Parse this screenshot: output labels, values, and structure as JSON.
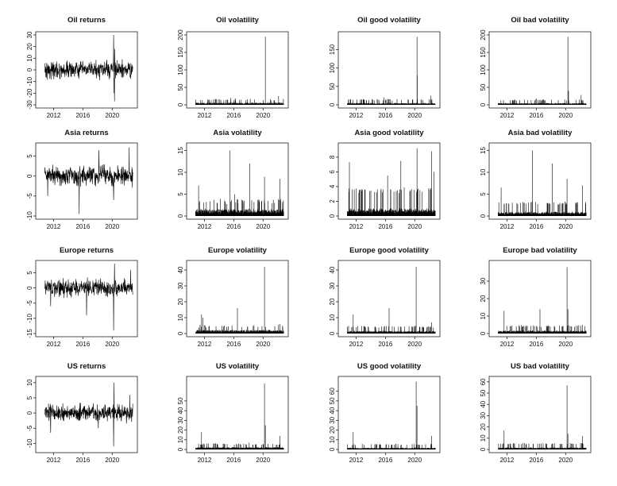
{
  "figure": {
    "columns": 4,
    "rows": 4
  },
  "chart_data": [
    {
      "type": "line",
      "title": "Oil returns",
      "x_ticks": [
        "2012",
        "2016",
        "2020"
      ],
      "y_ticks": [
        "-30",
        "-20",
        "-10",
        "0",
        "10",
        "20",
        "30"
      ],
      "xlim": [
        2010,
        2023
      ],
      "ylim": [
        -30,
        30
      ],
      "style": "returns",
      "noise": 3.5,
      "spikes": [
        {
          "x": 2020.2,
          "y": 30
        },
        {
          "x": 2020.3,
          "y": -27
        },
        {
          "x": 2020.35,
          "y": 18
        },
        {
          "x": 2020.25,
          "y": -20
        }
      ],
      "grid": false
    },
    {
      "type": "line",
      "title": "Oil volatility",
      "x_ticks": [
        "2012",
        "2016",
        "2020"
      ],
      "y_ticks": [
        "0",
        "50",
        "100",
        "150",
        "200"
      ],
      "xlim": [
        2010,
        2023
      ],
      "ylim": [
        0,
        200
      ],
      "style": "vol",
      "base": 4,
      "noise": 4,
      "spikes": [
        {
          "x": 2020.3,
          "y": 195
        },
        {
          "x": 2015.6,
          "y": 20
        },
        {
          "x": 2016.2,
          "y": 18
        },
        {
          "x": 2022.1,
          "y": 25
        }
      ],
      "grid": false
    },
    {
      "type": "line",
      "title": "Oil good volatility",
      "x_ticks": [
        "2012",
        "2016",
        "2020"
      ],
      "y_ticks": [
        "0",
        "50",
        "100",
        "150"
      ],
      "xlim": [
        2010,
        2023
      ],
      "ylim": [
        0,
        190
      ],
      "style": "vol",
      "base": 3,
      "noise": 4,
      "spikes": [
        {
          "x": 2020.3,
          "y": 185
        },
        {
          "x": 2020.35,
          "y": 80
        },
        {
          "x": 2015.8,
          "y": 20
        },
        {
          "x": 2022.2,
          "y": 25
        }
      ],
      "grid": false
    },
    {
      "type": "line",
      "title": "Oil bad volatility",
      "x_ticks": [
        "2012",
        "2016",
        "2020"
      ],
      "y_ticks": [
        "0",
        "50",
        "100",
        "150",
        "200"
      ],
      "xlim": [
        2010,
        2023
      ],
      "ylim": [
        0,
        200
      ],
      "style": "vol",
      "base": 3,
      "noise": 4,
      "spikes": [
        {
          "x": 2020.3,
          "y": 195
        },
        {
          "x": 2020.4,
          "y": 40
        },
        {
          "x": 2016.0,
          "y": 18
        },
        {
          "x": 2022.1,
          "y": 28
        }
      ],
      "grid": false
    },
    {
      "type": "line",
      "title": "Asia returns",
      "x_ticks": [
        "2012",
        "2016",
        "2020"
      ],
      "y_ticks": [
        "-10",
        "-5",
        "0",
        "5"
      ],
      "xlim": [
        2010,
        2023
      ],
      "ylim": [
        -10,
        7.5
      ],
      "style": "returns",
      "noise": 1.2,
      "spikes": [
        {
          "x": 2015.5,
          "y": -9.5
        },
        {
          "x": 2018.2,
          "y": 6.5
        },
        {
          "x": 2022.3,
          "y": 7.2
        },
        {
          "x": 2020.2,
          "y": -6
        },
        {
          "x": 2011.2,
          "y": -5
        }
      ],
      "grid": false
    },
    {
      "type": "line",
      "title": "Asia volatility",
      "x_ticks": [
        "2012",
        "2016",
        "2020"
      ],
      "y_ticks": [
        "0",
        "5",
        "10",
        "15"
      ],
      "xlim": [
        2010,
        2023
      ],
      "ylim": [
        0,
        16
      ],
      "style": "vol",
      "base": 1,
      "noise": 0.9,
      "spikes": [
        {
          "x": 2015.5,
          "y": 15
        },
        {
          "x": 2018.2,
          "y": 12
        },
        {
          "x": 2020.2,
          "y": 9
        },
        {
          "x": 2022.3,
          "y": 8.5
        },
        {
          "x": 2011.2,
          "y": 7
        },
        {
          "x": 2016.1,
          "y": 5
        }
      ],
      "grid": false
    },
    {
      "type": "line",
      "title": "Asia good volatility",
      "x_ticks": [
        "2012",
        "2016",
        "2020"
      ],
      "y_ticks": [
        "0",
        "2",
        "4",
        "6",
        "8"
      ],
      "xlim": [
        2010,
        2023
      ],
      "ylim": [
        0,
        9.5
      ],
      "style": "vol",
      "base": 0.5,
      "noise": 1.1,
      "spikes": [
        {
          "x": 2020.3,
          "y": 9.2
        },
        {
          "x": 2022.3,
          "y": 8.8
        },
        {
          "x": 2018.1,
          "y": 7.5
        },
        {
          "x": 2011.1,
          "y": 7.3
        },
        {
          "x": 2016.3,
          "y": 5.5
        },
        {
          "x": 2022.6,
          "y": 6
        }
      ],
      "grid": false
    },
    {
      "type": "line",
      "title": "Asia bad volatility",
      "x_ticks": [
        "2012",
        "2016",
        "2020"
      ],
      "y_ticks": [
        "0",
        "5",
        "10",
        "15"
      ],
      "xlim": [
        2010,
        2023
      ],
      "ylim": [
        0,
        16
      ],
      "style": "vol",
      "base": 0.5,
      "noise": 0.9,
      "spikes": [
        {
          "x": 2015.5,
          "y": 15
        },
        {
          "x": 2018.2,
          "y": 12
        },
        {
          "x": 2020.2,
          "y": 8.5
        },
        {
          "x": 2011.2,
          "y": 6.5
        },
        {
          "x": 2022.3,
          "y": 7
        }
      ],
      "grid": false
    },
    {
      "type": "line",
      "title": "Europe returns",
      "x_ticks": [
        "2012",
        "2016",
        "2020"
      ],
      "y_ticks": [
        "-15",
        "-10",
        "-5",
        "0",
        "5"
      ],
      "xlim": [
        2010,
        2023
      ],
      "ylim": [
        -15,
        8
      ],
      "style": "returns",
      "noise": 1.4,
      "spikes": [
        {
          "x": 2020.2,
          "y": -14
        },
        {
          "x": 2020.3,
          "y": 8
        },
        {
          "x": 2016.5,
          "y": -9
        },
        {
          "x": 2011.6,
          "y": -6
        },
        {
          "x": 2022.5,
          "y": 6
        }
      ],
      "grid": false
    },
    {
      "type": "line",
      "title": "Europe volatility",
      "x_ticks": [
        "2012",
        "2016",
        "2020"
      ],
      "y_ticks": [
        "0",
        "10",
        "20",
        "30",
        "40"
      ],
      "xlim": [
        2010,
        2023
      ],
      "ylim": [
        0,
        44
      ],
      "style": "vol",
      "base": 1.5,
      "noise": 1.2,
      "spikes": [
        {
          "x": 2020.2,
          "y": 42
        },
        {
          "x": 2016.5,
          "y": 16
        },
        {
          "x": 2011.6,
          "y": 12
        },
        {
          "x": 2011.8,
          "y": 10
        },
        {
          "x": 2022.3,
          "y": 6
        }
      ],
      "grid": false
    },
    {
      "type": "line",
      "title": "Europe good volatility",
      "x_ticks": [
        "2012",
        "2016",
        "2020"
      ],
      "y_ticks": [
        "0",
        "10",
        "20",
        "30",
        "40"
      ],
      "xlim": [
        2010,
        2023
      ],
      "ylim": [
        0,
        44
      ],
      "style": "vol",
      "base": 1,
      "noise": 1.2,
      "spikes": [
        {
          "x": 2020.2,
          "y": 42
        },
        {
          "x": 2016.5,
          "y": 16
        },
        {
          "x": 2011.6,
          "y": 12
        },
        {
          "x": 2022.3,
          "y": 7
        }
      ],
      "grid": false
    },
    {
      "type": "line",
      "title": "Europe bad volatility",
      "x_ticks": [
        "2012",
        "2016",
        "2020"
      ],
      "y_ticks": [
        "0",
        "10",
        "20",
        "30"
      ],
      "xlim": [
        2010,
        2023
      ],
      "ylim": [
        0,
        40
      ],
      "style": "vol",
      "base": 1,
      "noise": 1.2,
      "spikes": [
        {
          "x": 2020.2,
          "y": 38
        },
        {
          "x": 2020.3,
          "y": 14
        },
        {
          "x": 2016.5,
          "y": 14
        },
        {
          "x": 2011.6,
          "y": 13
        },
        {
          "x": 2022.3,
          "y": 5
        }
      ],
      "grid": false
    },
    {
      "type": "line",
      "title": "US returns",
      "x_ticks": [
        "2012",
        "2016",
        "2020"
      ],
      "y_ticks": [
        "-10",
        "-5",
        "0",
        "5",
        "10"
      ],
      "xlim": [
        2010,
        2023
      ],
      "ylim": [
        -12,
        11
      ],
      "style": "returns",
      "noise": 1.3,
      "spikes": [
        {
          "x": 2020.2,
          "y": -11
        },
        {
          "x": 2020.25,
          "y": 10
        },
        {
          "x": 2018.1,
          "y": -5
        },
        {
          "x": 2011.6,
          "y": -6.5
        },
        {
          "x": 2022.4,
          "y": 6
        }
      ],
      "grid": false
    },
    {
      "type": "line",
      "title": "US volatility",
      "x_ticks": [
        "2012",
        "2016",
        "2020"
      ],
      "y_ticks": [
        "0",
        "10",
        "20",
        "30",
        "40",
        "50"
      ],
      "xlim": [
        2010,
        2023
      ],
      "ylim": [
        0,
        72
      ],
      "style": "vol",
      "base": 1.5,
      "noise": 1.5,
      "spikes": [
        {
          "x": 2020.2,
          "y": 68
        },
        {
          "x": 2020.3,
          "y": 25
        },
        {
          "x": 2011.6,
          "y": 18
        },
        {
          "x": 2022.3,
          "y": 14
        },
        {
          "x": 2018.1,
          "y": 7
        }
      ],
      "grid": false
    },
    {
      "type": "line",
      "title": "US good volatility",
      "x_ticks": [
        "2012",
        "2016",
        "2020"
      ],
      "y_ticks": [
        "0",
        "10",
        "20",
        "30",
        "40",
        "50",
        "60"
      ],
      "xlim": [
        2010,
        2023
      ],
      "ylim": [
        0,
        72
      ],
      "style": "vol",
      "base": 1,
      "noise": 1.5,
      "spikes": [
        {
          "x": 2020.2,
          "y": 70
        },
        {
          "x": 2020.3,
          "y": 45
        },
        {
          "x": 2011.6,
          "y": 18
        },
        {
          "x": 2022.3,
          "y": 14
        }
      ],
      "grid": false
    },
    {
      "type": "line",
      "title": "US bad volatility",
      "x_ticks": [
        "2012",
        "2016",
        "2020"
      ],
      "y_ticks": [
        "0",
        "10",
        "20",
        "30",
        "40",
        "50",
        "60"
      ],
      "xlim": [
        2010,
        2023
      ],
      "ylim": [
        0,
        62
      ],
      "style": "vol",
      "base": 1,
      "noise": 1.5,
      "spikes": [
        {
          "x": 2020.2,
          "y": 57
        },
        {
          "x": 2020.3,
          "y": 14
        },
        {
          "x": 2011.6,
          "y": 17
        },
        {
          "x": 2022.3,
          "y": 12
        }
      ],
      "grid": false
    }
  ]
}
